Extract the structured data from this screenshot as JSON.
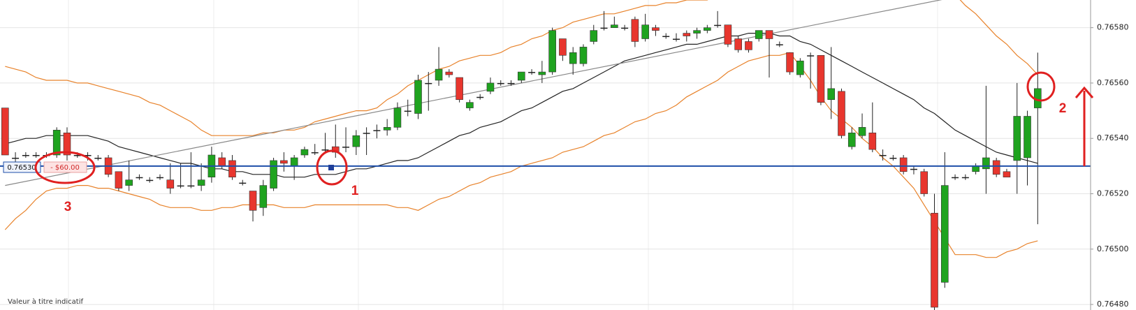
{
  "chart_data": {
    "type": "candlestick",
    "up_color": "#1fa31f",
    "down_color": "#e8362e",
    "doji_color": "#222222",
    "wick_color": "#222222",
    "ylim": [
      0.76478,
      0.7659
    ],
    "yticks": [
      {
        "value": 0.7648,
        "label": "0.76480"
      },
      {
        "value": 0.765,
        "label": "0.76500"
      },
      {
        "value": 0.7652,
        "label": "0.76520"
      },
      {
        "value": 0.7654,
        "label": "0.76540"
      },
      {
        "value": 0.7656,
        "label": "0.76560"
      },
      {
        "value": 0.7658,
        "label": "0.76580"
      }
    ],
    "grid": true,
    "open": [
      0.76551,
      0.76533,
      0.76534,
      0.76534,
      0.76534,
      0.76534,
      0.76542,
      0.76534,
      0.76534,
      0.76533,
      0.76533,
      0.76528,
      0.76523,
      0.76526,
      0.76525,
      0.76526,
      0.76525,
      0.76523,
      0.76523,
      0.76523,
      0.76526,
      0.76533,
      0.76532,
      0.76524,
      0.76521,
      0.76515,
      0.76522,
      0.76532,
      0.7653,
      0.76534,
      0.76535,
      0.76536,
      0.76537,
      0.76537,
      0.76537,
      0.76542,
      0.76543,
      0.76543,
      0.76544,
      0.7655,
      0.76549,
      0.7656,
      0.76561,
      0.76564,
      0.76562,
      0.76551,
      0.76555,
      0.76557,
      0.7656,
      0.7656,
      0.76561,
      0.76564,
      0.76563,
      0.76564,
      0.76576,
      0.76567,
      0.76567,
      0.76575,
      0.7658,
      0.7658,
      0.7658,
      0.76583,
      0.76576,
      0.7658,
      0.76577,
      0.76576,
      0.76578,
      0.76578,
      0.76579,
      0.76581,
      0.76581,
      0.76576,
      0.76575,
      0.76576,
      0.76579,
      0.76574,
      0.76571,
      0.76563,
      0.7657,
      0.7657,
      0.76554,
      0.76557,
      0.76537,
      0.76541,
      0.76542,
      0.76534,
      0.76533,
      0.76533,
      0.76529,
      0.76528,
      0.76513,
      0.76488,
      0.76526,
      0.76526,
      0.76528,
      0.76529,
      0.76532,
      0.76528,
      0.76532,
      0.76533,
      0.76551
    ],
    "high": [
      0.76551,
      0.76535,
      0.76535,
      0.76535,
      0.76535,
      0.76544,
      0.76544,
      0.76535,
      0.76535,
      0.76534,
      0.76534,
      0.76528,
      0.76532,
      0.76527,
      0.76526,
      0.76527,
      0.76531,
      0.76531,
      0.76535,
      0.76531,
      0.76537,
      0.76535,
      0.76534,
      0.76525,
      0.76521,
      0.76525,
      0.76533,
      0.76535,
      0.76534,
      0.76537,
      0.76538,
      0.76542,
      0.76545,
      0.76544,
      0.76543,
      0.76544,
      0.76545,
      0.76547,
      0.76553,
      0.76554,
      0.76563,
      0.76564,
      0.76573,
      0.76565,
      0.76562,
      0.76554,
      0.76556,
      0.76562,
      0.76561,
      0.76561,
      0.76564,
      0.76565,
      0.76568,
      0.7658,
      0.76576,
      0.76573,
      0.76574,
      0.76581,
      0.76586,
      0.76584,
      0.76581,
      0.76584,
      0.76585,
      0.76581,
      0.76578,
      0.76578,
      0.76579,
      0.7658,
      0.76581,
      0.76586,
      0.76581,
      0.76577,
      0.76576,
      0.76579,
      0.76579,
      0.76575,
      0.76571,
      0.76569,
      0.76571,
      0.7657,
      0.76573,
      0.76558,
      0.76544,
      0.76549,
      0.76553,
      0.76536,
      0.76534,
      0.76534,
      0.7653,
      0.76529,
      0.7652,
      0.76535,
      0.76527,
      0.76527,
      0.76531,
      0.76559,
      0.76533,
      0.76529,
      0.7656,
      0.7655,
      0.76571
    ],
    "low": [
      0.76534,
      0.7653,
      0.76533,
      0.76533,
      0.76533,
      0.76533,
      0.76532,
      0.76533,
      0.76532,
      0.76532,
      0.76526,
      0.76521,
      0.76521,
      0.76525,
      0.76524,
      0.76525,
      0.7652,
      0.76522,
      0.76522,
      0.76521,
      0.76524,
      0.76529,
      0.76525,
      0.76523,
      0.7651,
      0.76512,
      0.76521,
      0.76528,
      0.76525,
      0.76533,
      0.76534,
      0.76535,
      0.76533,
      0.76535,
      0.76534,
      0.76534,
      0.7654,
      0.76541,
      0.76543,
      0.76548,
      0.76547,
      0.7655,
      0.76559,
      0.76562,
      0.76553,
      0.7655,
      0.76554,
      0.76556,
      0.76559,
      0.76559,
      0.7656,
      0.76563,
      0.7656,
      0.76563,
      0.76568,
      0.76563,
      0.76566,
      0.76574,
      0.76579,
      0.7658,
      0.76579,
      0.76573,
      0.76575,
      0.76577,
      0.76576,
      0.76575,
      0.76575,
      0.76576,
      0.76578,
      0.7658,
      0.76573,
      0.76571,
      0.76571,
      0.76575,
      0.76562,
      0.76573,
      0.76563,
      0.76562,
      0.76558,
      0.76552,
      0.76547,
      0.7654,
      0.76536,
      0.7654,
      0.76535,
      0.76532,
      0.76532,
      0.76527,
      0.76527,
      0.76519,
      0.76478,
      0.76486,
      0.76525,
      0.76525,
      0.76527,
      0.7652,
      0.76526,
      0.76526,
      0.7652,
      0.76523,
      0.76509
    ],
    "close": [
      0.76534,
      0.76533,
      0.76534,
      0.76534,
      0.76534,
      0.76543,
      0.76534,
      0.76534,
      0.76534,
      0.76533,
      0.76527,
      0.76522,
      0.76525,
      0.76526,
      0.76525,
      0.76526,
      0.76522,
      0.76523,
      0.76523,
      0.76525,
      0.76534,
      0.7653,
      0.76526,
      0.76524,
      0.76514,
      0.76523,
      0.76532,
      0.76531,
      0.76533,
      0.76536,
      0.76535,
      0.76536,
      0.76535,
      0.76537,
      0.76541,
      0.76542,
      0.76543,
      0.76544,
      0.76551,
      0.7655,
      0.76561,
      0.7656,
      0.76565,
      0.76563,
      0.76554,
      0.76553,
      0.76555,
      0.7656,
      0.7656,
      0.7656,
      0.76564,
      0.76564,
      0.76564,
      0.76579,
      0.7657,
      0.76571,
      0.76573,
      0.76579,
      0.7658,
      0.76581,
      0.7658,
      0.76575,
      0.76581,
      0.76579,
      0.76577,
      0.76576,
      0.76577,
      0.76579,
      0.7658,
      0.76581,
      0.76574,
      0.76572,
      0.76572,
      0.76579,
      0.76576,
      0.76574,
      0.76564,
      0.76568,
      0.7657,
      0.76553,
      0.76558,
      0.76541,
      0.76542,
      0.76544,
      0.76536,
      0.76534,
      0.76533,
      0.76528,
      0.76529,
      0.7652,
      0.76479,
      0.76523,
      0.76526,
      0.76526,
      0.7653,
      0.76533,
      0.76527,
      0.76526,
      0.76548,
      0.76548,
      0.76558
    ],
    "upper_band": {
      "color": "#e8822a",
      "values": [
        0.76566,
        0.76565,
        0.76564,
        0.76562,
        0.76561,
        0.76561,
        0.76561,
        0.7656,
        0.7656,
        0.76559,
        0.76558,
        0.76557,
        0.76556,
        0.76555,
        0.76553,
        0.76552,
        0.7655,
        0.76548,
        0.76546,
        0.76543,
        0.76541,
        0.76541,
        0.76541,
        0.76541,
        0.76541,
        0.76542,
        0.76542,
        0.76543,
        0.76543,
        0.76544,
        0.76546,
        0.76547,
        0.76548,
        0.76549,
        0.7655,
        0.7655,
        0.76551,
        0.76554,
        0.76556,
        0.76559,
        0.76561,
        0.76563,
        0.76565,
        0.76566,
        0.76568,
        0.76569,
        0.7657,
        0.7657,
        0.76571,
        0.76573,
        0.76574,
        0.76576,
        0.76577,
        0.76579,
        0.7658,
        0.76582,
        0.76583,
        0.76584,
        0.76585,
        0.76585,
        0.76586,
        0.76587,
        0.76588,
        0.76588,
        0.76589,
        0.76589,
        0.7659,
        0.7659,
        0.7659,
        0.76592,
        0.76594,
        0.76595,
        0.76597,
        0.76598,
        0.76599,
        0.76599,
        0.766,
        0.766,
        0.76601,
        0.76601,
        0.76601,
        0.76601,
        0.76601,
        0.76601,
        0.76601,
        0.76601,
        0.766,
        0.766,
        0.76599,
        0.76597,
        0.76596,
        0.76594,
        0.76592,
        0.76588,
        0.76585,
        0.76581,
        0.76577,
        0.76574,
        0.7657,
        0.76567,
        0.76563
      ]
    },
    "middle_band": {
      "color": "#222222",
      "values": [
        0.76538,
        0.76539,
        0.7654,
        0.7654,
        0.76541,
        0.76541,
        0.76541,
        0.76541,
        0.76541,
        0.7654,
        0.76539,
        0.76537,
        0.76536,
        0.76535,
        0.76534,
        0.76533,
        0.76532,
        0.76531,
        0.76531,
        0.7653,
        0.76529,
        0.76529,
        0.76528,
        0.76528,
        0.76527,
        0.76527,
        0.76527,
        0.76526,
        0.76526,
        0.76526,
        0.76527,
        0.76527,
        0.76527,
        0.76528,
        0.76529,
        0.76529,
        0.7653,
        0.76531,
        0.76532,
        0.76532,
        0.76533,
        0.76535,
        0.76537,
        0.76539,
        0.76541,
        0.76542,
        0.76544,
        0.76545,
        0.76546,
        0.76548,
        0.7655,
        0.76551,
        0.76553,
        0.76555,
        0.76557,
        0.76558,
        0.7656,
        0.76562,
        0.76564,
        0.76566,
        0.76568,
        0.76569,
        0.7657,
        0.76571,
        0.76572,
        0.76573,
        0.76574,
        0.76574,
        0.76575,
        0.76576,
        0.76577,
        0.76577,
        0.76578,
        0.76578,
        0.76578,
        0.76577,
        0.76577,
        0.76575,
        0.76574,
        0.76572,
        0.7657,
        0.76568,
        0.76566,
        0.76564,
        0.76562,
        0.7656,
        0.76558,
        0.76556,
        0.76554,
        0.76551,
        0.76549,
        0.76546,
        0.76543,
        0.76541,
        0.76539,
        0.76537,
        0.76535,
        0.76534,
        0.76533,
        0.76532,
        0.76531
      ]
    },
    "lower_band": {
      "color": "#e8822a",
      "values": [
        0.76507,
        0.76511,
        0.76514,
        0.76518,
        0.76521,
        0.76522,
        0.76522,
        0.76523,
        0.76523,
        0.76522,
        0.76522,
        0.76521,
        0.7652,
        0.76519,
        0.76518,
        0.76516,
        0.76515,
        0.76515,
        0.76515,
        0.76514,
        0.76514,
        0.76515,
        0.76515,
        0.76516,
        0.76516,
        0.76516,
        0.76516,
        0.76515,
        0.76515,
        0.76515,
        0.76516,
        0.76516,
        0.76516,
        0.76516,
        0.76516,
        0.76516,
        0.76516,
        0.76516,
        0.76515,
        0.76515,
        0.76514,
        0.76516,
        0.76518,
        0.76519,
        0.76521,
        0.76523,
        0.76524,
        0.76526,
        0.76527,
        0.76528,
        0.7653,
        0.76531,
        0.76532,
        0.76533,
        0.76535,
        0.76536,
        0.76537,
        0.76539,
        0.76541,
        0.76542,
        0.76544,
        0.76546,
        0.76547,
        0.76549,
        0.7655,
        0.76552,
        0.76555,
        0.76557,
        0.76559,
        0.76561,
        0.76564,
        0.76566,
        0.76568,
        0.76569,
        0.7657,
        0.7657,
        0.76571,
        0.76566,
        0.76561,
        0.76555,
        0.7655,
        0.76547,
        0.76544,
        0.7654,
        0.76537,
        0.76533,
        0.7653,
        0.76526,
        0.76522,
        0.76516,
        0.7651,
        0.76504,
        0.76498,
        0.76498,
        0.76498,
        0.76497,
        0.76497,
        0.76499,
        0.765,
        0.76502,
        0.76503
      ]
    },
    "trendline": {
      "color": "#888888",
      "values": [
        0.76523,
        0.76597
      ]
    },
    "level": {
      "value": 0.7653,
      "label": "0.76530",
      "color": "#1f4fa8"
    },
    "pnl_label": "- $60.00",
    "annotations": [
      "1",
      "2",
      "3"
    ],
    "note": "Valeur à titre indicatif"
  }
}
